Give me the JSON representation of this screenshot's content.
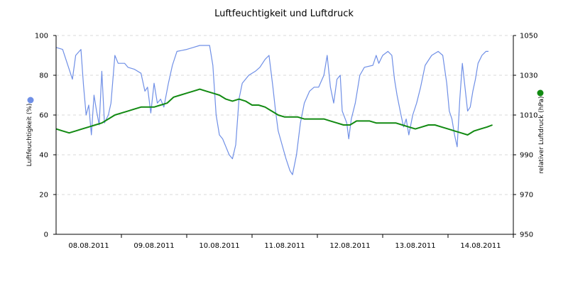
{
  "chart_data": {
    "type": "line",
    "title": "Luftfeuchtigkeit und Luftdruck",
    "ylabel": "Luftfeuchtigkeit (%)",
    "y2label": "relativer Luftdruck (hPa)",
    "ylim": [
      0,
      100
    ],
    "y2lim": [
      950,
      1050
    ],
    "yticks": [
      0,
      20,
      40,
      60,
      80,
      100
    ],
    "y2ticks": [
      950,
      970,
      990,
      1010,
      1030,
      1050
    ],
    "xlim": [
      0,
      7.0
    ],
    "xticks": [
      {
        "x": 0.5,
        "label": "08.08.2011"
      },
      {
        "x": 1.5,
        "label": "09.08.2011"
      },
      {
        "x": 2.5,
        "label": "10.08.2011"
      },
      {
        "x": 3.5,
        "label": "11.08.2011"
      },
      {
        "x": 4.5,
        "label": "12.08.2011"
      },
      {
        "x": 5.5,
        "label": "13.08.2011"
      },
      {
        "x": 6.5,
        "label": "14.08.2011"
      }
    ],
    "x_separators": [
      1,
      2,
      3,
      4,
      5,
      6,
      7
    ],
    "grid": true,
    "series": [
      {
        "axis": "left",
        "color": "#6f8fe6",
        "values": [
          [
            0.0,
            94
          ],
          [
            0.1,
            93
          ],
          [
            0.15,
            88
          ],
          [
            0.25,
            78
          ],
          [
            0.3,
            90
          ],
          [
            0.38,
            93
          ],
          [
            0.42,
            75
          ],
          [
            0.46,
            60
          ],
          [
            0.5,
            65
          ],
          [
            0.54,
            50
          ],
          [
            0.58,
            70
          ],
          [
            0.62,
            62
          ],
          [
            0.66,
            55
          ],
          [
            0.7,
            82
          ],
          [
            0.74,
            56
          ],
          [
            0.8,
            60
          ],
          [
            0.84,
            66
          ],
          [
            0.9,
            90
          ],
          [
            0.95,
            86
          ],
          [
            1.05,
            86
          ],
          [
            1.1,
            84
          ],
          [
            1.2,
            83
          ],
          [
            1.3,
            81
          ],
          [
            1.36,
            72
          ],
          [
            1.4,
            74
          ],
          [
            1.45,
            61
          ],
          [
            1.5,
            76
          ],
          [
            1.55,
            66
          ],
          [
            1.6,
            68
          ],
          [
            1.65,
            64
          ],
          [
            1.72,
            76
          ],
          [
            1.78,
            85
          ],
          [
            1.85,
            92
          ],
          [
            2.0,
            93
          ],
          [
            2.1,
            94
          ],
          [
            2.2,
            95
          ],
          [
            2.35,
            95
          ],
          [
            2.4,
            85
          ],
          [
            2.45,
            60
          ],
          [
            2.5,
            50
          ],
          [
            2.55,
            48
          ],
          [
            2.6,
            44
          ],
          [
            2.65,
            40
          ],
          [
            2.7,
            38
          ],
          [
            2.75,
            45
          ],
          [
            2.8,
            68
          ],
          [
            2.85,
            76
          ],
          [
            2.95,
            80
          ],
          [
            3.05,
            82
          ],
          [
            3.12,
            84
          ],
          [
            3.2,
            88
          ],
          [
            3.26,
            90
          ],
          [
            3.32,
            74
          ],
          [
            3.36,
            62
          ],
          [
            3.4,
            52
          ],
          [
            3.46,
            45
          ],
          [
            3.52,
            38
          ],
          [
            3.58,
            32
          ],
          [
            3.62,
            30
          ],
          [
            3.68,
            40
          ],
          [
            3.74,
            56
          ],
          [
            3.8,
            66
          ],
          [
            3.88,
            72
          ],
          [
            3.95,
            74
          ],
          [
            4.02,
            74
          ],
          [
            4.1,
            80
          ],
          [
            4.15,
            90
          ],
          [
            4.2,
            74
          ],
          [
            4.25,
            66
          ],
          [
            4.3,
            78
          ],
          [
            4.35,
            80
          ],
          [
            4.38,
            62
          ],
          [
            4.45,
            56
          ],
          [
            4.48,
            48
          ],
          [
            4.52,
            58
          ],
          [
            4.58,
            66
          ],
          [
            4.65,
            80
          ],
          [
            4.72,
            84
          ],
          [
            4.85,
            85
          ],
          [
            4.9,
            90
          ],
          [
            4.94,
            86
          ],
          [
            5.0,
            90
          ],
          [
            5.08,
            92
          ],
          [
            5.14,
            90
          ],
          [
            5.18,
            78
          ],
          [
            5.22,
            70
          ],
          [
            5.28,
            60
          ],
          [
            5.32,
            54
          ],
          [
            5.36,
            58
          ],
          [
            5.4,
            50
          ],
          [
            5.46,
            60
          ],
          [
            5.52,
            66
          ],
          [
            5.58,
            74
          ],
          [
            5.65,
            85
          ],
          [
            5.75,
            90
          ],
          [
            5.85,
            92
          ],
          [
            5.92,
            90
          ],
          [
            5.98,
            76
          ],
          [
            6.02,
            62
          ],
          [
            6.06,
            58
          ],
          [
            6.1,
            50
          ],
          [
            6.14,
            44
          ],
          [
            6.18,
            68
          ],
          [
            6.22,
            86
          ],
          [
            6.26,
            74
          ],
          [
            6.3,
            62
          ],
          [
            6.34,
            64
          ],
          [
            6.38,
            72
          ],
          [
            6.42,
            78
          ],
          [
            6.46,
            86
          ],
          [
            6.52,
            90
          ],
          [
            6.58,
            92
          ],
          [
            6.62,
            92
          ]
        ]
      },
      {
        "axis": "right",
        "color": "#128a12",
        "values": [
          [
            0.0,
            1003
          ],
          [
            0.1,
            1002
          ],
          [
            0.2,
            1001
          ],
          [
            0.3,
            1002
          ],
          [
            0.4,
            1003
          ],
          [
            0.5,
            1004
          ],
          [
            0.6,
            1005
          ],
          [
            0.7,
            1006
          ],
          [
            0.8,
            1008
          ],
          [
            0.9,
            1010
          ],
          [
            1.0,
            1011
          ],
          [
            1.1,
            1012
          ],
          [
            1.2,
            1013
          ],
          [
            1.3,
            1014
          ],
          [
            1.4,
            1014
          ],
          [
            1.5,
            1014
          ],
          [
            1.6,
            1015
          ],
          [
            1.7,
            1016
          ],
          [
            1.8,
            1019
          ],
          [
            1.9,
            1020
          ],
          [
            2.0,
            1021
          ],
          [
            2.1,
            1022
          ],
          [
            2.2,
            1023
          ],
          [
            2.3,
            1022
          ],
          [
            2.4,
            1021
          ],
          [
            2.5,
            1020
          ],
          [
            2.6,
            1018
          ],
          [
            2.7,
            1017
          ],
          [
            2.8,
            1018
          ],
          [
            2.9,
            1017
          ],
          [
            3.0,
            1015
          ],
          [
            3.1,
            1015
          ],
          [
            3.2,
            1014
          ],
          [
            3.3,
            1012
          ],
          [
            3.4,
            1010
          ],
          [
            3.5,
            1009
          ],
          [
            3.6,
            1009
          ],
          [
            3.7,
            1009
          ],
          [
            3.8,
            1008
          ],
          [
            3.9,
            1008
          ],
          [
            4.0,
            1008
          ],
          [
            4.1,
            1008
          ],
          [
            4.2,
            1007
          ],
          [
            4.3,
            1006
          ],
          [
            4.4,
            1005
          ],
          [
            4.5,
            1005
          ],
          [
            4.6,
            1007
          ],
          [
            4.7,
            1007
          ],
          [
            4.8,
            1007
          ],
          [
            4.9,
            1006
          ],
          [
            5.0,
            1006
          ],
          [
            5.1,
            1006
          ],
          [
            5.2,
            1006
          ],
          [
            5.3,
            1005
          ],
          [
            5.4,
            1004
          ],
          [
            5.5,
            1003
          ],
          [
            5.6,
            1004
          ],
          [
            5.7,
            1005
          ],
          [
            5.8,
            1005
          ],
          [
            5.9,
            1004
          ],
          [
            6.0,
            1003
          ],
          [
            6.1,
            1002
          ],
          [
            6.2,
            1001
          ],
          [
            6.3,
            1000
          ],
          [
            6.4,
            1002
          ],
          [
            6.5,
            1003
          ],
          [
            6.6,
            1004
          ],
          [
            6.68,
            1005
          ]
        ]
      }
    ]
  }
}
